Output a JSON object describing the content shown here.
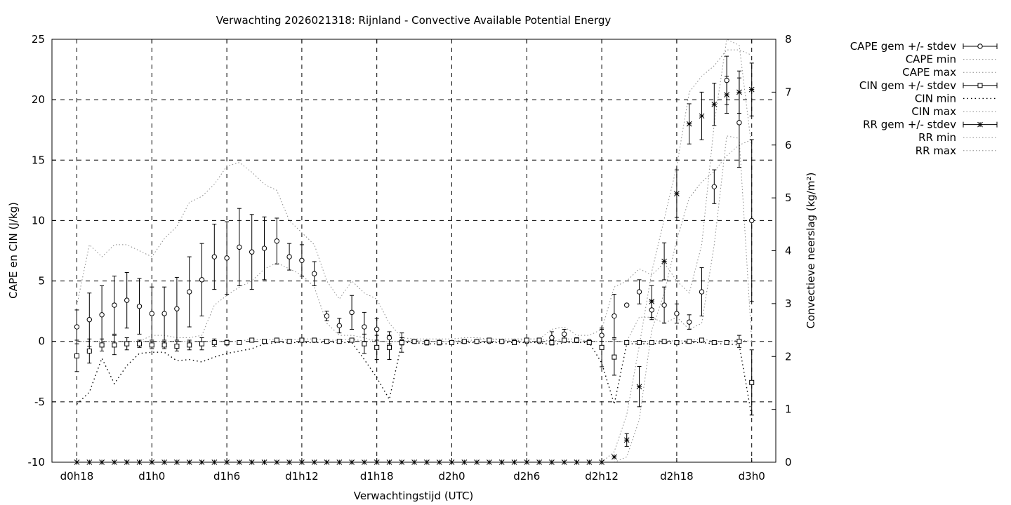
{
  "chart_data": {
    "type": "line",
    "title": "Verwachting 2026021318: Rijnland - Convective Available Potential Energy",
    "xlabel": "Verwachtingstijd (UTC)",
    "ylabel": "CAPE en CIN (J/kg)",
    "y2label": "Convectieve neerslag (kg/m²)",
    "xlim": [
      18,
      80
    ],
    "ylim": [
      -10,
      25
    ],
    "y2lim": [
      0,
      8
    ],
    "x_ticks": [
      {
        "x": 18,
        "label": "d0h18"
      },
      {
        "x": 24,
        "label": "d1h0"
      },
      {
        "x": 30,
        "label": "d1h6"
      },
      {
        "x": 36,
        "label": "d1h12"
      },
      {
        "x": 42,
        "label": "d1h18"
      },
      {
        "x": 48,
        "label": "d2h0"
      },
      {
        "x": 54,
        "label": "d2h6"
      },
      {
        "x": 60,
        "label": "d2h12"
      },
      {
        "x": 66,
        "label": "d2h18"
      },
      {
        "x": 72,
        "label": "d3h0"
      }
    ],
    "y_ticks": [
      "-10",
      "-5",
      "0",
      "5",
      "10",
      "15",
      "20",
      "25"
    ],
    "y2_ticks": [
      "0",
      "1",
      "2",
      "3",
      "4",
      "5",
      "6",
      "7",
      "8"
    ],
    "grid": true,
    "legend_position": "outside-right",
    "x": [
      18,
      19,
      20,
      21,
      22,
      23,
      24,
      25,
      26,
      27,
      28,
      29,
      30,
      31,
      32,
      33,
      34,
      35,
      36,
      37,
      38,
      39,
      40,
      41,
      42,
      43,
      44,
      45,
      46,
      47,
      48,
      49,
      50,
      51,
      52,
      53,
      54,
      55,
      56,
      57,
      58,
      59,
      60,
      61,
      62,
      63,
      64,
      65,
      66,
      67,
      68,
      69,
      70,
      71,
      72
    ],
    "series": [
      {
        "name": "CAPE gem +/- stdev",
        "axis": "y",
        "marker": "circle",
        "style": "errorbars",
        "values": [
          1.2,
          1.8,
          2.2,
          3.0,
          3.4,
          2.9,
          2.3,
          2.3,
          2.7,
          4.1,
          5.1,
          7.0,
          6.9,
          7.8,
          7.4,
          7.7,
          8.3,
          7.0,
          6.7,
          5.6,
          2.1,
          1.3,
          2.4,
          1.2,
          1.0,
          0.3,
          0.0,
          0.0,
          -0.1,
          -0.1,
          -0.1,
          0.0,
          0.0,
          0.0,
          0.0,
          0.0,
          0.0,
          0.0,
          0.3,
          0.6,
          0.1,
          0.0,
          0.5,
          2.1,
          3.0,
          4.1,
          2.6,
          3.0,
          2.3,
          1.6,
          4.1,
          12.8,
          21.6,
          18.1,
          10.0
        ],
        "stdev": [
          1.4,
          2.2,
          2.4,
          2.4,
          2.3,
          2.3,
          2.2,
          2.2,
          2.6,
          2.9,
          3.0,
          2.7,
          3.0,
          3.2,
          3.1,
          2.6,
          1.9,
          1.1,
          1.3,
          1.0,
          0.4,
          0.6,
          1.4,
          1.2,
          0.9,
          0.5,
          0.3,
          0.1,
          0.2,
          0.2,
          0.1,
          0.1,
          0.1,
          0.1,
          0.1,
          0.1,
          0.1,
          0.1,
          0.5,
          0.4,
          0.2,
          0.1,
          0.5,
          1.8,
          0.1,
          1.0,
          0.8,
          1.5,
          0.8,
          0.6,
          2.0,
          1.4,
          2.0,
          3.7,
          6.7
        ]
      },
      {
        "name": "CIN gem +/- stdev",
        "axis": "y",
        "marker": "square",
        "style": "errorbars",
        "values": [
          -1.2,
          -0.8,
          -0.3,
          -0.3,
          -0.2,
          -0.2,
          -0.3,
          -0.3,
          -0.4,
          -0.3,
          -0.2,
          -0.1,
          -0.1,
          -0.1,
          0.1,
          0.0,
          0.1,
          0.0,
          0.1,
          0.1,
          0.0,
          0.0,
          0.1,
          -0.2,
          -0.5,
          -0.5,
          -0.1,
          0.0,
          -0.1,
          -0.1,
          -0.1,
          0.0,
          0.0,
          0.1,
          0.0,
          -0.1,
          0.1,
          0.1,
          -0.1,
          0.1,
          0.1,
          -0.1,
          -0.5,
          -1.3,
          -0.1,
          -0.1,
          -0.1,
          0.0,
          -0.1,
          0.0,
          0.1,
          -0.1,
          -0.1,
          0.0,
          -3.4
        ],
        "stdev": [
          1.3,
          1.0,
          0.5,
          0.8,
          0.5,
          0.3,
          0.3,
          0.3,
          0.4,
          0.4,
          0.5,
          0.3,
          0.2,
          0.1,
          0.1,
          0.1,
          0.1,
          0.1,
          0.1,
          0.1,
          0.1,
          0.1,
          0.1,
          0.8,
          1.0,
          1.0,
          0.8,
          0.1,
          0.1,
          0.1,
          0.1,
          0.1,
          0.1,
          0.1,
          0.1,
          0.1,
          0.1,
          0.1,
          0.2,
          0.1,
          0.1,
          0.1,
          1.6,
          1.5,
          0.1,
          0.1,
          0.1,
          0.1,
          0.1,
          0.1,
          0.1,
          0.1,
          0.1,
          0.5,
          2.7
        ]
      },
      {
        "name": "RR gem +/- stdev",
        "axis": "y2",
        "marker": "star",
        "style": "errorbars",
        "values": [
          0,
          0,
          0,
          0,
          0,
          0,
          0,
          0,
          0,
          0,
          0,
          0,
          0,
          0,
          0,
          0,
          0,
          0,
          0,
          0,
          0,
          0,
          0,
          0,
          0,
          0,
          0,
          0,
          0,
          0,
          0,
          0,
          0,
          0,
          0,
          0,
          0,
          0,
          0,
          0,
          0,
          0,
          0,
          0.1,
          0.42,
          1.43,
          3.04,
          3.8,
          5.08,
          6.4,
          6.55,
          6.77,
          6.95,
          7.0,
          7.05
        ],
        "stdev": [
          0,
          0,
          0,
          0,
          0,
          0,
          0,
          0,
          0,
          0,
          0,
          0,
          0,
          0,
          0,
          0,
          0,
          0,
          0,
          0,
          0,
          0,
          0,
          0,
          0,
          0,
          0,
          0,
          0,
          0,
          0,
          0,
          0,
          0,
          0,
          0,
          0,
          0,
          0,
          0,
          0,
          0,
          0,
          0,
          0.12,
          0.38,
          0.3,
          0.35,
          0.45,
          0.38,
          0.45,
          0.4,
          0.35,
          0.4,
          0.5
        ]
      },
      {
        "name": "CAPE min",
        "axis": "y",
        "style": "dotted",
        "values": [
          0,
          0,
          0,
          0,
          0,
          0,
          0.5,
          0.5,
          0.3,
          0.3,
          0.5,
          3.0,
          3.8,
          4.5,
          5.0,
          6.0,
          6.5,
          6.0,
          5.5,
          4.5,
          1.5,
          0.5,
          0.5,
          0.3,
          0,
          0,
          0,
          0,
          0,
          0,
          0,
          0,
          0,
          0,
          0,
          0,
          0,
          0,
          0,
          0,
          0,
          0,
          0,
          0,
          0,
          2.0,
          2.0,
          1.5,
          2.0,
          1.0,
          1.5,
          8.0,
          17.0,
          16.8,
          0
        ]
      },
      {
        "name": "CAPE max",
        "axis": "y",
        "style": "dotted",
        "values": [
          3.0,
          8.0,
          7.0,
          8.0,
          8.0,
          7.5,
          7.0,
          8.5,
          9.5,
          11.5,
          12.0,
          13.0,
          14.5,
          14.8,
          14.0,
          13.0,
          12.5,
          10.0,
          9.0,
          8.0,
          5.0,
          3.5,
          5.0,
          4.0,
          3.5,
          1.5,
          0.3,
          0.2,
          0.2,
          0.2,
          0.2,
          0.3,
          0.3,
          0.2,
          0.2,
          0.2,
          0.2,
          0.2,
          1.0,
          1.2,
          0.5,
          0.5,
          1.0,
          4.5,
          5.0,
          6.0,
          5.5,
          6.5,
          5.0,
          4.0,
          8.0,
          18.0,
          25.0,
          24.5,
          16.0
        ]
      },
      {
        "name": "CIN min",
        "axis": "y",
        "style": "dotted",
        "values": [
          -5.2,
          -4.2,
          -1.4,
          -3.5,
          -2.0,
          -1.0,
          -0.9,
          -0.9,
          -1.6,
          -1.5,
          -1.7,
          -1.3,
          -1.0,
          -0.8,
          -0.6,
          -0.2,
          -0.1,
          -0.1,
          -0.1,
          -0.1,
          -0.1,
          -0.1,
          -0.1,
          -1.5,
          -3.0,
          -4.8,
          -0.1,
          -0.1,
          -0.2,
          -0.2,
          -0.2,
          -0.1,
          -0.1,
          -0.1,
          -0.1,
          -0.1,
          -0.1,
          -0.1,
          -0.3,
          -0.1,
          -0.1,
          -0.1,
          -1.8,
          -5.2,
          -0.2,
          -0.2,
          -0.2,
          -0.1,
          -0.2,
          -0.1,
          -0.1,
          -0.2,
          -0.2,
          -0.3,
          -6.2
        ]
      },
      {
        "name": "CIN max",
        "axis": "y",
        "style": "dotted",
        "values": [
          0,
          0,
          0,
          0,
          0,
          0,
          0,
          0,
          0,
          0,
          0,
          0,
          0,
          0,
          0.2,
          0.1,
          0.2,
          0.1,
          0.2,
          0.2,
          0.1,
          0.1,
          0.2,
          0,
          0,
          0,
          0,
          0.1,
          0,
          0,
          0,
          0.1,
          0.1,
          0.2,
          0.1,
          0,
          0.2,
          0.2,
          0,
          0.2,
          0.2,
          0,
          0,
          0,
          0,
          0,
          0,
          0.1,
          0,
          0.1,
          0.2,
          0,
          0,
          0.1,
          0
        ]
      },
      {
        "name": "RR min",
        "axis": "y2",
        "style": "dotted",
        "values": [
          0,
          0,
          0,
          0,
          0,
          0,
          0,
          0,
          0,
          0,
          0,
          0,
          0,
          0,
          0,
          0,
          0,
          0,
          0,
          0,
          0,
          0,
          0,
          0,
          0,
          0,
          0,
          0,
          0,
          0,
          0,
          0,
          0,
          0,
          0,
          0,
          0,
          0,
          0,
          0,
          0,
          0,
          0,
          0,
          0.1,
          0.8,
          2.5,
          3.2,
          4.2,
          5.0,
          5.3,
          5.5,
          5.8,
          6.0,
          6.1
        ]
      },
      {
        "name": "RR max",
        "axis": "y2",
        "style": "dotted",
        "values": [
          0,
          0,
          0,
          0,
          0,
          0,
          0,
          0,
          0,
          0,
          0,
          0,
          0,
          0,
          0,
          0,
          0,
          0,
          0,
          0,
          0,
          0,
          0,
          0,
          0,
          0,
          0,
          0,
          0,
          0,
          0,
          0,
          0,
          0,
          0,
          0,
          0,
          0,
          0,
          0,
          0,
          0,
          0,
          0.2,
          0.9,
          2.2,
          3.6,
          4.6,
          5.6,
          7.0,
          7.3,
          7.5,
          7.8,
          7.8,
          7.7
        ]
      }
    ]
  }
}
